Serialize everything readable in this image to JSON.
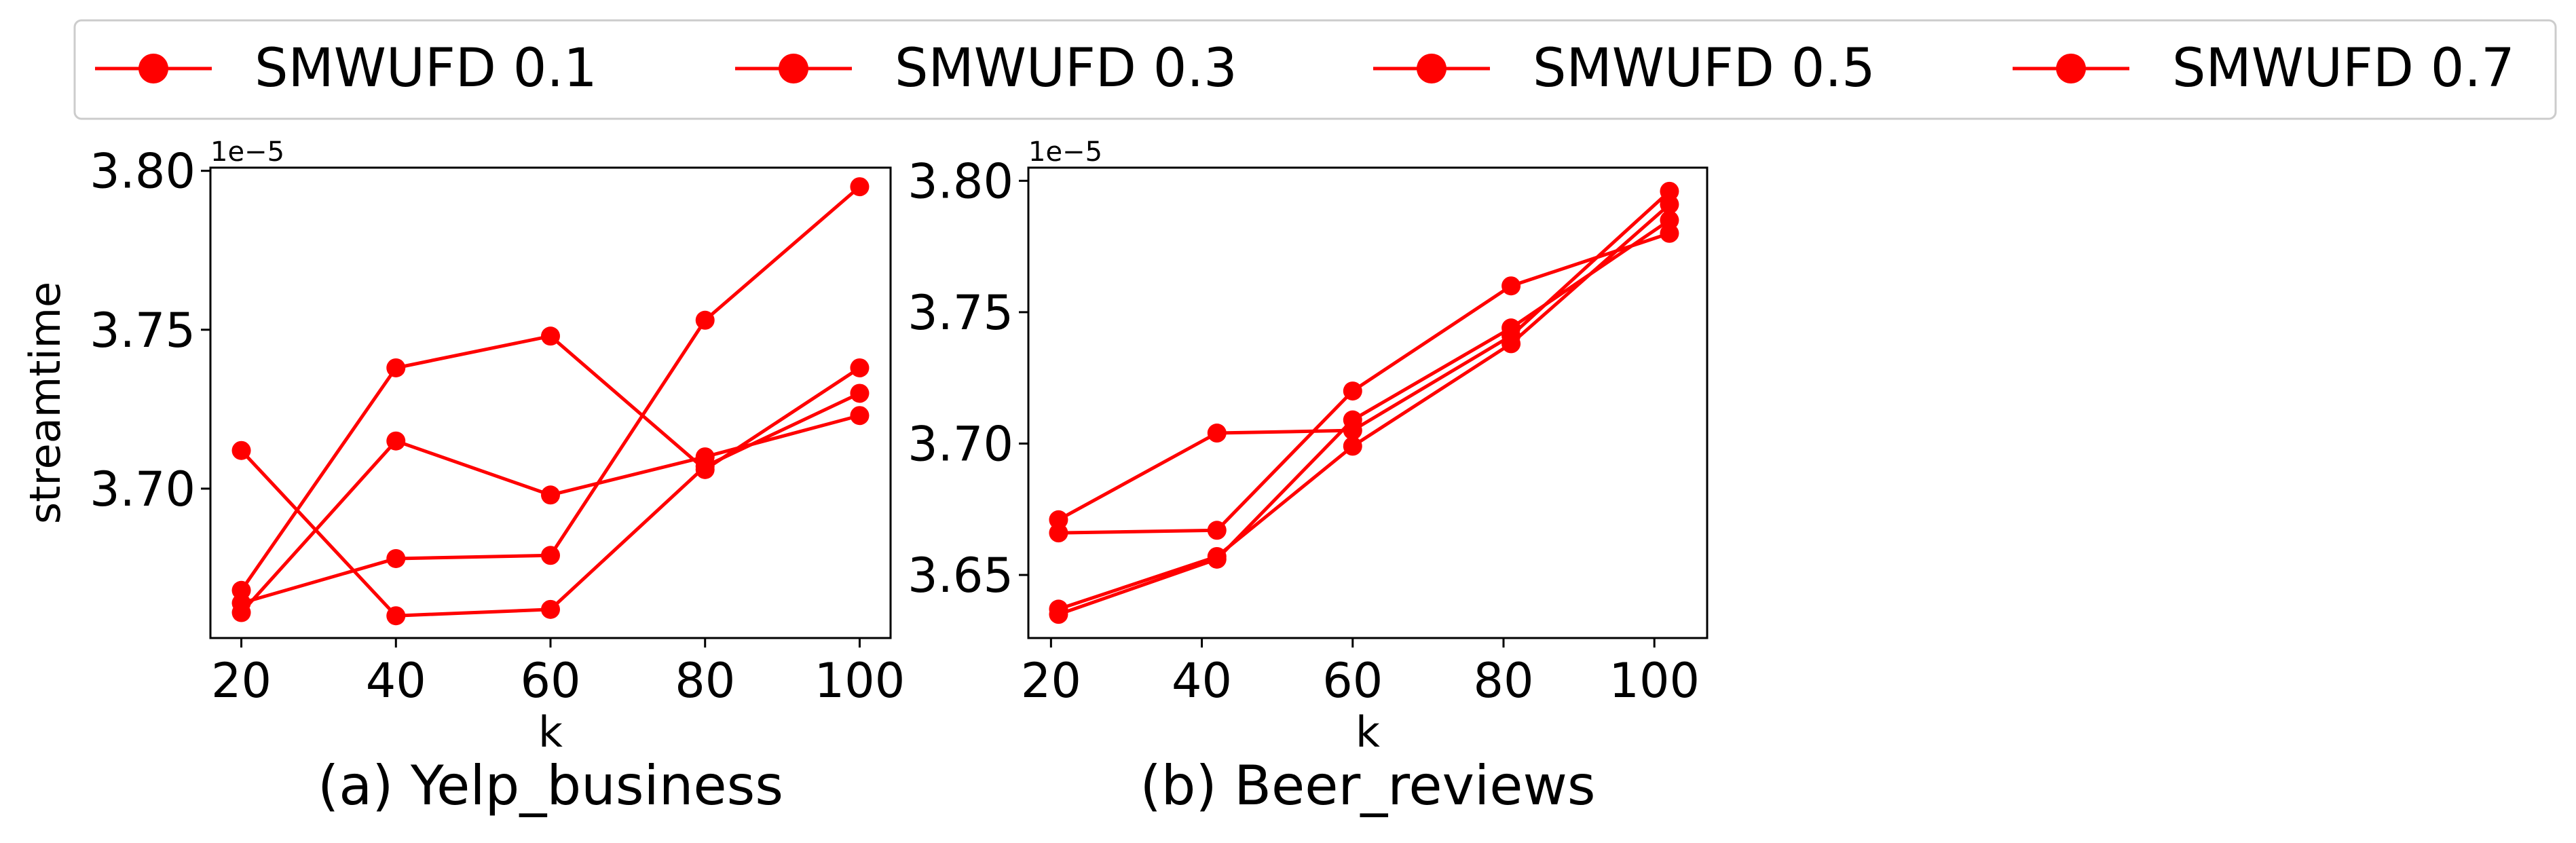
{
  "legend": {
    "placement": "top-center",
    "entries": [
      "SMWUFD 0.1",
      "SMWUFD 0.3",
      "SMWUFD 0.5",
      "SMWUFD 0.7"
    ]
  },
  "chart_data": [
    {
      "type": "line",
      "caption": "(a) Yelp_business",
      "xlabel": "k",
      "ylabel": "streamtime",
      "offset_label": "1e−5",
      "x": [
        20,
        40,
        60,
        80,
        100
      ],
      "xticks": [
        20,
        40,
        60,
        80,
        100
      ],
      "xlim": [
        16,
        104
      ],
      "yticks": [
        3.7,
        3.75,
        3.8
      ],
      "ytick_labels": [
        "3.70",
        "3.75",
        "3.80"
      ],
      "ylim": [
        3.653,
        3.801
      ],
      "color": "#ff0000",
      "grid": false,
      "series": [
        {
          "name": "SMWUFD 0.1",
          "values": [
            3.664,
            3.678,
            3.679,
            3.753,
            3.795
          ]
        },
        {
          "name": "SMWUFD 0.3",
          "values": [
            3.712,
            3.66,
            3.662,
            3.707,
            3.73
          ]
        },
        {
          "name": "SMWUFD 0.5",
          "values": [
            3.661,
            3.715,
            3.698,
            3.71,
            3.723
          ]
        },
        {
          "name": "SMWUFD 0.7",
          "values": [
            3.668,
            3.738,
            3.748,
            3.706,
            3.738
          ]
        }
      ]
    },
    {
      "type": "line",
      "caption": "(b) Beer_reviews",
      "xlabel": "k",
      "ylabel": "",
      "offset_label": "1e−5",
      "x": [
        21,
        42,
        60,
        81,
        102
      ],
      "xticks": [
        20,
        40,
        60,
        80,
        100
      ],
      "xlim": [
        17,
        107
      ],
      "yticks": [
        3.65,
        3.7,
        3.75,
        3.8
      ],
      "ytick_labels": [
        "3.65",
        "3.70",
        "3.75",
        "3.80"
      ],
      "ylim": [
        3.626,
        3.805
      ],
      "color": "#ff0000",
      "grid": false,
      "series": [
        {
          "name": "SMWUFD 0.1",
          "values": [
            3.666,
            3.667,
            3.72,
            3.76,
            3.78
          ]
        },
        {
          "name": "SMWUFD 0.3",
          "values": [
            3.671,
            3.704,
            3.705,
            3.741,
            3.796
          ]
        },
        {
          "name": "SMWUFD 0.5",
          "values": [
            3.637,
            3.657,
            3.699,
            3.738,
            3.791
          ]
        },
        {
          "name": "SMWUFD 0.7",
          "values": [
            3.635,
            3.656,
            3.709,
            3.744,
            3.785
          ]
        }
      ]
    }
  ]
}
